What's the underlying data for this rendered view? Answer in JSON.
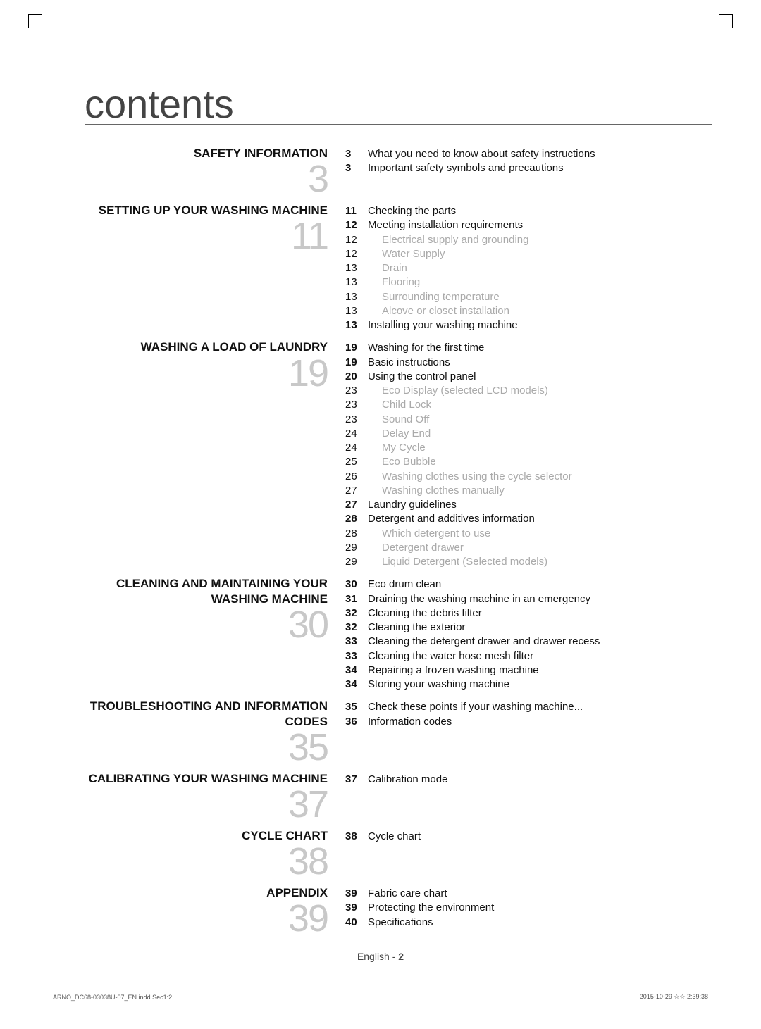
{
  "page": {
    "title": "contents",
    "footer_lang": "English - ",
    "footer_page": "2",
    "slug_left": "ARNO_DC68-03038U-07_EN.indd   Sec1:2",
    "slug_right": "2015-10-29   ☆☆ 2:39:38"
  },
  "sections": [
    {
      "heading": "SAFETY INFORMATION",
      "num": "3",
      "entries": [
        {
          "pg": "3",
          "bold": true,
          "txt": "What you need to know about safety instructions",
          "sub": false
        },
        {
          "pg": "3",
          "bold": true,
          "txt": "Important safety symbols and precautions",
          "sub": false
        }
      ]
    },
    {
      "heading": "SETTING UP YOUR WASHING MACHINE",
      "num": "11",
      "entries": [
        {
          "pg": "11",
          "bold": true,
          "txt": "Checking the parts",
          "sub": false
        },
        {
          "pg": "12",
          "bold": true,
          "txt": "Meeting installation requirements",
          "sub": false
        },
        {
          "pg": "12",
          "bold": false,
          "txt": "Electrical supply and grounding",
          "sub": true
        },
        {
          "pg": "12",
          "bold": false,
          "txt": "Water Supply",
          "sub": true
        },
        {
          "pg": "13",
          "bold": false,
          "txt": "Drain",
          "sub": true
        },
        {
          "pg": "13",
          "bold": false,
          "txt": "Flooring",
          "sub": true
        },
        {
          "pg": "13",
          "bold": false,
          "txt": "Surrounding temperature",
          "sub": true
        },
        {
          "pg": "13",
          "bold": false,
          "txt": "Alcove or closet installation",
          "sub": true
        },
        {
          "pg": "13",
          "bold": true,
          "txt": "Installing your washing machine",
          "sub": false
        }
      ]
    },
    {
      "heading": "WASHING A LOAD OF LAUNDRY",
      "num": "19",
      "entries": [
        {
          "pg": "19",
          "bold": true,
          "txt": "Washing for the first time",
          "sub": false
        },
        {
          "pg": "19",
          "bold": true,
          "txt": "Basic instructions",
          "sub": false
        },
        {
          "pg": "20",
          "bold": true,
          "txt": "Using the control panel",
          "sub": false
        },
        {
          "pg": "23",
          "bold": false,
          "txt": "Eco Display (selected LCD models)",
          "sub": true
        },
        {
          "pg": "23",
          "bold": false,
          "txt": "Child Lock",
          "sub": true
        },
        {
          "pg": "23",
          "bold": false,
          "txt": "Sound Off",
          "sub": true
        },
        {
          "pg": "24",
          "bold": false,
          "txt": "Delay End",
          "sub": true
        },
        {
          "pg": "24",
          "bold": false,
          "txt": "My Cycle",
          "sub": true
        },
        {
          "pg": "25",
          "bold": false,
          "txt": "Eco Bubble",
          "sub": true
        },
        {
          "pg": "26",
          "bold": false,
          "txt": "Washing clothes using the cycle selector",
          "sub": true
        },
        {
          "pg": "27",
          "bold": false,
          "txt": "Washing clothes manually",
          "sub": true
        },
        {
          "pg": "27",
          "bold": true,
          "txt": "Laundry guidelines",
          "sub": false
        },
        {
          "pg": "28",
          "bold": true,
          "txt": "Detergent and additives information",
          "sub": false
        },
        {
          "pg": "28",
          "bold": false,
          "txt": "Which detergent to use",
          "sub": true
        },
        {
          "pg": "29",
          "bold": false,
          "txt": "Detergent drawer",
          "sub": true
        },
        {
          "pg": "29",
          "bold": false,
          "txt": "Liquid Detergent (Selected models)",
          "sub": true
        }
      ]
    },
    {
      "heading": "CLEANING AND MAINTAINING YOUR WASHING MACHINE",
      "num": "30",
      "entries": [
        {
          "pg": "30",
          "bold": true,
          "txt": "Eco drum clean",
          "sub": false
        },
        {
          "pg": "31",
          "bold": true,
          "txt": "Draining the washing machine in an emergency",
          "sub": false
        },
        {
          "pg": "32",
          "bold": true,
          "txt": "Cleaning the debris filter",
          "sub": false
        },
        {
          "pg": "32",
          "bold": true,
          "txt": "Cleaning the exterior",
          "sub": false
        },
        {
          "pg": "33",
          "bold": true,
          "txt": "Cleaning the detergent drawer and drawer recess",
          "sub": false
        },
        {
          "pg": "33",
          "bold": true,
          "txt": "Cleaning the water hose mesh filter",
          "sub": false
        },
        {
          "pg": "34",
          "bold": true,
          "txt": "Repairing a frozen washing machine",
          "sub": false
        },
        {
          "pg": "34",
          "bold": true,
          "txt": "Storing your washing machine",
          "sub": false
        }
      ]
    },
    {
      "heading": "TROUBLESHOOTING AND INFORMATION CODES",
      "num": "35",
      "entries": [
        {
          "pg": "35",
          "bold": true,
          "txt": "Check these points if your washing machine...",
          "sub": false
        },
        {
          "pg": "36",
          "bold": true,
          "txt": "Information codes",
          "sub": false
        }
      ]
    },
    {
      "heading": "CALIBRATING YOUR WASHING MACHINE",
      "num": "37",
      "entries": [
        {
          "pg": "37",
          "bold": true,
          "txt": "Calibration mode",
          "sub": false
        }
      ]
    },
    {
      "heading": "CYCLE CHART",
      "num": "38",
      "entries": [
        {
          "pg": "38",
          "bold": true,
          "txt": "Cycle chart",
          "sub": false
        }
      ]
    },
    {
      "heading": "APPENDIX",
      "num": "39",
      "entries": [
        {
          "pg": "39",
          "bold": true,
          "txt": "Fabric care chart",
          "sub": false
        },
        {
          "pg": "39",
          "bold": true,
          "txt": "Protecting the environment",
          "sub": false
        },
        {
          "pg": "40",
          "bold": true,
          "txt": "Specifications",
          "sub": false
        }
      ]
    }
  ]
}
